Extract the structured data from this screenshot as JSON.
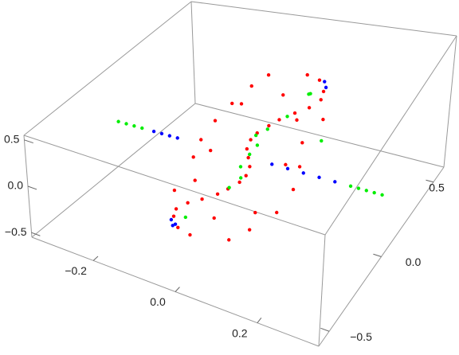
{
  "chart_data": {
    "type": "scatter3d",
    "xlim": [
      -0.35,
      0.35
    ],
    "ylim": [
      -0.6,
      0.6
    ],
    "zlim": [
      -0.55,
      0.55
    ],
    "xticks": [
      {
        "value": -0.2,
        "label": "−0.2"
      },
      {
        "value": 0,
        "label": "0.0"
      },
      {
        "value": 0.2,
        "label": "0.2"
      }
    ],
    "yticks": [
      {
        "value": -0.5,
        "label": "−0.5"
      },
      {
        "value": 0,
        "label": "0.0"
      },
      {
        "value": 0.5,
        "label": "0.5"
      }
    ],
    "zticks": [
      {
        "value": -0.5,
        "label": "−0.5"
      },
      {
        "value": 0,
        "label": "0.0"
      },
      {
        "value": 0.5,
        "label": "0.5"
      }
    ],
    "series": [
      {
        "color": "#ff0000",
        "x": [
          -0.1,
          -0.12,
          -0.12,
          -0.1,
          -0.07,
          -0.04,
          -0.02,
          0,
          0.01,
          0.01,
          0,
          -0.01,
          -0.01,
          0,
          0.02,
          0.04,
          0.07,
          0.1,
          0.12,
          0.12,
          0.1,
          -0.12,
          -0.14,
          -0.13,
          -0.11,
          -0.08,
          -0.05,
          -0.02,
          0.02,
          0.06,
          0.11,
          0.13,
          0.13,
          0.12,
          0.09,
          0.05,
          -0.05,
          0.08,
          -0.08,
          0.03,
          -0.03,
          0.06,
          -0.06,
          0.15,
          -0.15
        ],
        "y": [
          -0.25,
          -0.22,
          -0.2,
          -0.17,
          -0.15,
          -0.12,
          -0.1,
          -0.07,
          -0.05,
          -0.02,
          0,
          0.02,
          0.05,
          0.07,
          0.1,
          0.12,
          0.15,
          0.17,
          0.2,
          0.22,
          0.25,
          -0.05,
          0,
          0.03,
          0.08,
          0.12,
          0.18,
          0.22,
          -0.22,
          -0.18,
          -0.12,
          -0.05,
          0,
          0.05,
          0.1,
          -0.1,
          0.1,
          0.05,
          -0.05,
          0.18,
          -0.18,
          0.28,
          -0.28,
          0.12,
          -0.12
        ],
        "z": [
          -0.5,
          -0.45,
          -0.4,
          -0.35,
          -0.3,
          -0.25,
          -0.2,
          -0.15,
          -0.1,
          -0.05,
          0,
          0.05,
          0.1,
          0.15,
          0.2,
          0.25,
          0.3,
          0.35,
          0.4,
          0.45,
          0.5,
          -0.3,
          -0.15,
          0,
          0.15,
          0.3,
          0.42,
          0.5,
          -0.5,
          -0.4,
          -0.25,
          -0.1,
          0.05,
          0.2,
          0.32,
          -0.35,
          0.35,
          -0.05,
          0.05,
          0.4,
          -0.4,
          0.48,
          -0.48,
          0.35,
          -0.35
        ]
      },
      {
        "color": "#0000ff",
        "x": [
          -0.24,
          -0.22,
          -0.2,
          -0.18,
          0.06,
          0.1,
          0.14,
          0.18,
          0.22,
          0.11,
          0.12,
          -0.11,
          -0.12,
          -0.1
        ],
        "y": [
          0,
          0,
          0,
          0,
          0,
          0,
          0,
          0,
          0,
          0.26,
          0.24,
          -0.26,
          -0.24,
          -0.27
        ],
        "z": [
          0,
          0,
          0,
          0,
          0,
          0,
          0,
          0,
          0,
          0.48,
          0.46,
          -0.48,
          -0.46,
          -0.44
        ]
      },
      {
        "color": "#00ee00",
        "x": [
          -0.33,
          -0.31,
          -0.29,
          -0.27,
          0.26,
          0.28,
          0.3,
          0.32,
          0.34,
          0,
          0.01,
          -0.01,
          0,
          0,
          0.02,
          -0.02,
          0.09,
          0.08,
          -0.09,
          0.06,
          0.14
        ],
        "y": [
          0,
          0,
          0,
          0,
          0,
          0,
          0,
          0,
          0,
          0.01,
          0.04,
          -0.03,
          0.06,
          -0.06,
          0.09,
          -0.09,
          0.21,
          0.23,
          -0.22,
          0.12,
          0.15
        ],
        "z": [
          0,
          0,
          0,
          0,
          0,
          0,
          0,
          0,
          0,
          0.02,
          0.08,
          -0.06,
          0.14,
          -0.12,
          0.18,
          -0.2,
          0.42,
          0.38,
          -0.42,
          0.3,
          0.1
        ]
      }
    ]
  }
}
